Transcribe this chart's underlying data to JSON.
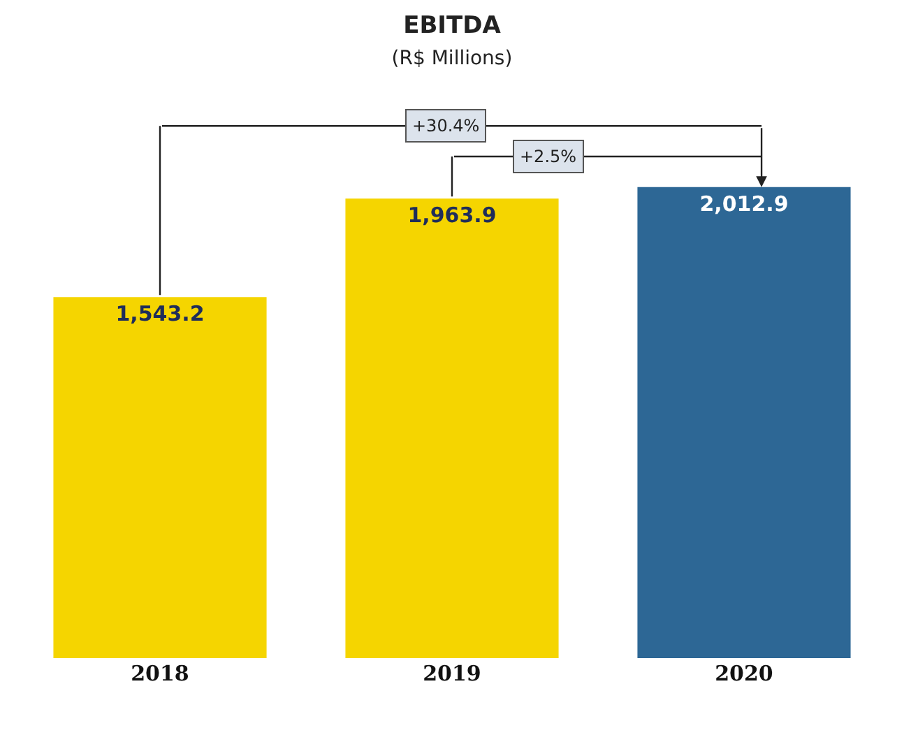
{
  "chart_data": {
    "type": "bar",
    "title": "EBITDA",
    "subtitle": "(R$ Millions)",
    "categories": [
      "2018",
      "2019",
      "2020"
    ],
    "values": [
      1543.2,
      1963.9,
      2012.9
    ],
    "colors": [
      "#f5d500",
      "#f5d500",
      "#2d6795"
    ],
    "value_labels": [
      "1,543.2",
      "1,963.9",
      "2,012.9"
    ],
    "annotations": [
      "+30.4%",
      "+2.5%"
    ],
    "legend": false
  }
}
